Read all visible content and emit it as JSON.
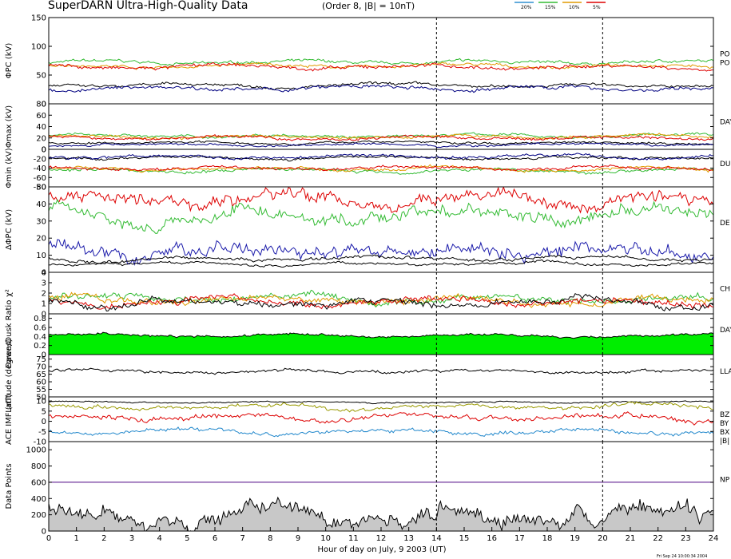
{
  "title": "SuperDARN Ultra-High-Quality Data",
  "subtitle": "(Order 8, |B| = 10nT)",
  "legend": [
    {
      "label": "20%",
      "color": "#2f8fd0"
    },
    {
      "label": "15%",
      "color": "#33bb33"
    },
    {
      "label": "10%",
      "color": "#e09a00"
    },
    {
      "label": "5%",
      "color": "#dd0000"
    }
  ],
  "xlabel": "Hour of day on July, 9 2003 (UT)",
  "timestamp": "Fri Sep 24 10:00:34 2004",
  "chart_data": {
    "type": "line",
    "x_range": [
      0,
      24
    ],
    "x_ticks": [
      "0",
      "1",
      "2",
      "3",
      "4",
      "5",
      "6",
      "7",
      "8",
      "9",
      "10",
      "11",
      "12",
      "13",
      "14",
      "15",
      "16",
      "17",
      "18",
      "19",
      "20",
      "21",
      "22",
      "23",
      "24"
    ],
    "reference_lines_x": [
      14,
      20
    ],
    "panels": [
      {
        "ylabel": "ΦPC (kV)",
        "yticks": [
          "0",
          "50",
          "100",
          "150"
        ],
        "ylim": [
          0,
          150
        ],
        "right_labels": [
          "PO",
          "PO"
        ],
        "series": [
          {
            "color": "#33bb33",
            "base": 72,
            "amp": 4
          },
          {
            "color": "#e09a00",
            "base": 66,
            "amp": 4
          },
          {
            "color": "#dd0000",
            "base": 64,
            "amp": 5
          },
          {
            "color": "#000000",
            "base": 32,
            "amp": 4
          },
          {
            "color": "#000080",
            "base": 27,
            "amp": 5
          }
        ]
      },
      {
        "ylabel": "Φmax (kV)",
        "yticks": [
          "0",
          "20",
          "40",
          "60",
          "80"
        ],
        "ylim": [
          0,
          80
        ],
        "right_labels": [
          "DAY"
        ],
        "series": [
          {
            "color": "#33bb33",
            "base": 24,
            "amp": 4
          },
          {
            "color": "#e09a00",
            "base": 22,
            "amp": 4
          },
          {
            "color": "#dd0000",
            "base": 20,
            "amp": 4
          },
          {
            "color": "#000000",
            "base": 12,
            "amp": 3
          },
          {
            "color": "#000080",
            "base": 8,
            "amp": 3
          }
        ]
      },
      {
        "ylabel": "Φmin (kV)",
        "yticks": [
          "-80",
          "-60",
          "-40",
          "-20",
          "0"
        ],
        "ylim": [
          -80,
          0
        ],
        "right_labels": [
          "DU"
        ],
        "series": [
          {
            "color": "#33bb33",
            "base": -45,
            "amp": 5
          },
          {
            "color": "#e09a00",
            "base": -42,
            "amp": 5
          },
          {
            "color": "#dd0000",
            "base": -40,
            "amp": 5
          },
          {
            "color": "#000000",
            "base": -18,
            "amp": 4
          },
          {
            "color": "#000080",
            "base": -15,
            "amp": 5
          }
        ]
      },
      {
        "ylabel": "ΔΦPC (kV)",
        "yticks": [
          "0",
          "10",
          "20",
          "30",
          "40",
          "50"
        ],
        "ylim": [
          0,
          50
        ],
        "right_labels": [
          "DE"
        ],
        "series": [
          {
            "color": "#dd0000",
            "base": 42,
            "amp": 6
          },
          {
            "color": "#33bb33",
            "base": 33,
            "amp": 6
          },
          {
            "color": "#1a1aaa",
            "base": 12,
            "amp": 6
          },
          {
            "color": "#000000",
            "base": 8,
            "amp": 1.5
          },
          {
            "color": "#000000",
            "base": 5,
            "amp": 1.2
          }
        ]
      },
      {
        "ylabel": "χ²",
        "yticks": [
          "0",
          "1",
          "2",
          "3",
          "4"
        ],
        "ylim": [
          0,
          4
        ],
        "right_labels": [
          "CH"
        ],
        "series": [
          {
            "color": "#33bb33",
            "base": 1.4,
            "amp": 0.5
          },
          {
            "color": "#e09a00",
            "base": 1.3,
            "amp": 0.5
          },
          {
            "color": "#dd0000",
            "base": 1.2,
            "amp": 0.5
          },
          {
            "color": "#000000",
            "base": 1.1,
            "amp": 0.5
          }
        ]
      },
      {
        "ylabel": "Dawn/Dusk Ratio",
        "yticks": [
          "0",
          "0.2",
          "0.4",
          "0.6",
          "0.8"
        ],
        "ylim": [
          0,
          0.9
        ],
        "right_labels": [
          "DAY"
        ],
        "fill_color": "#00ee00",
        "series": [
          {
            "color": "#000000",
            "base": 0.42,
            "amp": 0.04
          }
        ]
      },
      {
        "ylabel": "Latitude (degrees)",
        "yticks": [
          "50",
          "55",
          "60",
          "65",
          "70",
          "75"
        ],
        "ylim": [
          50,
          78
        ],
        "right_labels": [
          "LLA"
        ],
        "series": [
          {
            "color": "#000000",
            "base": 67,
            "amp": 1.5
          }
        ]
      },
      {
        "ylabel": "ACE IMF (nT)",
        "yticks": [
          "-10",
          "-5",
          "0",
          "5",
          "10"
        ],
        "ylim": [
          -10,
          12
        ],
        "right_labels": [
          "BZ",
          "BY",
          "BX",
          "|B|"
        ],
        "series": [
          {
            "color": "#000000",
            "base": 9.5,
            "amp": 0.5
          },
          {
            "color": "#999900",
            "base": 7,
            "amp": 1.5
          },
          {
            "color": "#dd0000",
            "base": 2,
            "amp": 2
          },
          {
            "color": "#2288cc",
            "base": -5,
            "amp": 1.5
          }
        ]
      },
      {
        "ylabel": "Data Points",
        "yticks": [
          "0",
          "200",
          "400",
          "600",
          "800",
          "1000"
        ],
        "ylim": [
          0,
          1100
        ],
        "right_labels": [
          "NP"
        ],
        "fill_color": "#c8c8c8",
        "series": [
          {
            "color": "#4b0082",
            "base": 600,
            "amp": 0
          },
          {
            "color": "#000000",
            "base": 200,
            "amp": 150
          }
        ]
      }
    ]
  }
}
